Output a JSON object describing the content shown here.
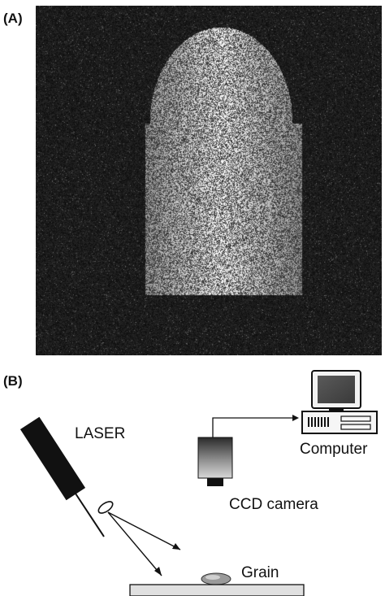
{
  "figure": {
    "panel_a_label": "(A)",
    "panel_b_label": "(B)"
  },
  "panel_a": {
    "image_description": "speckle pattern on grain"
  },
  "panel_b": {
    "laser_label": "LASER",
    "computer_label": "Computer",
    "camera_label": "CCD camera",
    "grain_label": "Grain"
  }
}
